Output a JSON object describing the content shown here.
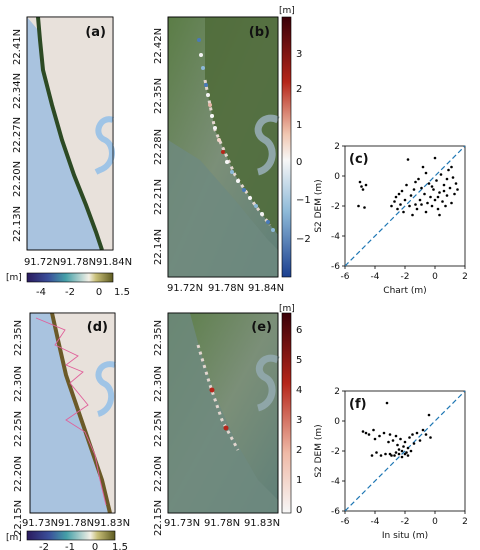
{
  "panels": {
    "a": {
      "letter": "(a)",
      "yticks": [
        "22.41N",
        "22.34N",
        "22.27N",
        "22.20N",
        "22.13N"
      ],
      "xticks": [
        "91.72N",
        "91.78N",
        "91.84N"
      ],
      "colorbar": {
        "unit": "[m]",
        "ticks": [
          "-4",
          "-2",
          "0",
          "1.5"
        ]
      }
    },
    "b": {
      "letter": "(b)",
      "yticks": [
        "22.42N",
        "22.35N",
        "22.28N",
        "22.21N",
        "22.14N"
      ],
      "xticks": [
        "91.72N",
        "91.78N",
        "91.84N"
      ],
      "colorbar": {
        "unit": "[m]",
        "ticks": [
          "3",
          "2",
          "1",
          "0",
          "−1",
          "−2"
        ]
      }
    },
    "d": {
      "letter": "(d)",
      "yticks": [
        "22.35N",
        "22.30N",
        "22.25N",
        "22.20N",
        "22.15N"
      ],
      "xticks": [
        "91.73N",
        "91.78N",
        "91.83N"
      ],
      "colorbar": {
        "unit": "[m]",
        "ticks": [
          "-2",
          "-1",
          "0",
          "1.5"
        ]
      }
    },
    "e": {
      "letter": "(e)",
      "yticks": [
        "22.35N",
        "22.30N",
        "22.25N",
        "22.20N",
        "22.15N"
      ],
      "xticks": [
        "91.73N",
        "91.78N",
        "91.83N"
      ],
      "colorbar": {
        "unit": "[m]",
        "ticks": [
          "6",
          "5",
          "4",
          "3",
          "2",
          "1",
          "0"
        ]
      }
    }
  },
  "colors": {
    "water": "#a9c3df",
    "land": "#e8e1db",
    "river": "#9fc4e6",
    "satellite_sea": "#6f8a78",
    "satellite_land": "#4e6a3a",
    "one_to_one": "#1f77b4",
    "point": "#000000",
    "track": "#e0609a"
  },
  "chart_data": [
    {
      "type": "scatter",
      "panel_letter": "(c)",
      "xlabel": "Chart (m)",
      "ylabel": "S2 DEM (m)",
      "xlim": [
        -6,
        2
      ],
      "ylim": [
        -6,
        2
      ],
      "xticks": [
        -6,
        -4,
        -2,
        0,
        2
      ],
      "yticks": [
        -6,
        -4,
        -2,
        0,
        2
      ],
      "reference_line": "1:1 dashed",
      "points": [
        [
          -5.0,
          -0.4
        ],
        [
          -4.9,
          -0.7
        ],
        [
          -4.8,
          -0.9
        ],
        [
          -4.6,
          -0.6
        ],
        [
          -4.7,
          -2.1
        ],
        [
          -5.1,
          -2.0
        ],
        [
          -2.9,
          -2.0
        ],
        [
          -2.7,
          -1.7
        ],
        [
          -2.6,
          -1.4
        ],
        [
          -2.5,
          -2.2
        ],
        [
          -2.3,
          -1.9
        ],
        [
          -2.2,
          -1.0
        ],
        [
          -2.1,
          -2.4
        ],
        [
          -2.0,
          -1.6
        ],
        [
          -1.9,
          -0.6
        ],
        [
          -1.8,
          1.1
        ],
        [
          -1.7,
          -2.0
        ],
        [
          -1.6,
          -1.3
        ],
        [
          -1.5,
          -2.6
        ],
        [
          -1.4,
          -0.9
        ],
        [
          -1.3,
          -1.9
        ],
        [
          -1.2,
          -2.2
        ],
        [
          -1.1,
          -0.2
        ],
        [
          -1.0,
          -1.6
        ],
        [
          -0.9,
          -0.8
        ],
        [
          -0.8,
          0.6
        ],
        [
          -0.7,
          -1.2
        ],
        [
          -0.6,
          -2.4
        ],
        [
          -0.5,
          -1.8
        ],
        [
          -0.4,
          -0.5
        ],
        [
          -0.3,
          -1.4
        ],
        [
          -0.2,
          -2.0
        ],
        [
          -0.1,
          -0.9
        ],
        [
          0.0,
          -1.6
        ],
        [
          0.1,
          -0.3
        ],
        [
          0.2,
          -2.2
        ],
        [
          0.3,
          -1.1
        ],
        [
          0.4,
          0.1
        ],
        [
          0.5,
          -1.7
        ],
        [
          0.6,
          -0.6
        ],
        [
          0.7,
          -2.0
        ],
        [
          0.8,
          -1.3
        ],
        [
          0.9,
          0.4
        ],
        [
          1.0,
          -0.8
        ],
        [
          1.1,
          -1.8
        ],
        [
          1.2,
          -0.1
        ],
        [
          1.3,
          -1.2
        ],
        [
          1.4,
          -0.5
        ],
        [
          1.5,
          -0.9
        ],
        [
          0.3,
          -2.6
        ],
        [
          -0.6,
          0.2
        ],
        [
          0.0,
          1.2
        ],
        [
          1.1,
          0.6
        ],
        [
          -1.3,
          -0.4
        ],
        [
          -2.4,
          -1.2
        ],
        [
          0.6,
          -1.0
        ],
        [
          -0.2,
          -0.7
        ],
        [
          0.8,
          -0.2
        ],
        [
          -0.9,
          -1.9
        ],
        [
          0.2,
          -1.4
        ]
      ]
    },
    {
      "type": "scatter",
      "panel_letter": "(f)",
      "xlabel": "In situ (m)",
      "ylabel": "S2 DEM (m)",
      "xlim": [
        -6,
        2
      ],
      "ylim": [
        -6,
        2
      ],
      "xticks": [
        -6,
        -4,
        -2,
        0,
        2
      ],
      "yticks": [
        -6,
        -4,
        -2,
        0,
        2
      ],
      "reference_line": "1:1 dashed",
      "points": [
        [
          -4.8,
          -0.7
        ],
        [
          -4.6,
          -0.8
        ],
        [
          -4.4,
          -0.9
        ],
        [
          -4.1,
          -0.6
        ],
        [
          -4.0,
          -1.2
        ],
        [
          -3.7,
          -1.0
        ],
        [
          -3.4,
          -0.8
        ],
        [
          -3.2,
          1.2
        ],
        [
          -3.1,
          -1.4
        ],
        [
          -3.0,
          -0.9
        ],
        [
          -2.8,
          -1.3
        ],
        [
          -2.6,
          -1.0
        ],
        [
          -2.5,
          -1.6
        ],
        [
          -2.4,
          -1.9
        ],
        [
          -2.3,
          -1.2
        ],
        [
          -2.2,
          -2.0
        ],
        [
          -2.1,
          -1.7
        ],
        [
          -2.0,
          -1.4
        ],
        [
          -1.9,
          -2.1
        ],
        [
          -1.8,
          -1.8
        ],
        [
          -1.7,
          -1.1
        ],
        [
          -1.6,
          -2.0
        ],
        [
          -1.5,
          -0.9
        ],
        [
          -1.4,
          -1.5
        ],
        [
          -1.2,
          -0.8
        ],
        [
          -1.0,
          -1.3
        ],
        [
          -0.8,
          -0.6
        ],
        [
          -0.6,
          -0.9
        ],
        [
          -0.4,
          0.4
        ],
        [
          -0.3,
          -1.1
        ],
        [
          -4.2,
          -2.3
        ],
        [
          -3.9,
          -2.1
        ],
        [
          -3.6,
          -2.3
        ],
        [
          -3.3,
          -2.2
        ],
        [
          -3.0,
          -2.2
        ],
        [
          -2.7,
          -2.3
        ],
        [
          -2.4,
          -2.2
        ],
        [
          -2.2,
          -2.4
        ],
        [
          -2.0,
          -2.2
        ],
        [
          -1.8,
          -2.3
        ],
        [
          -2.6,
          -2.1
        ],
        [
          -2.9,
          -2.3
        ]
      ]
    }
  ]
}
